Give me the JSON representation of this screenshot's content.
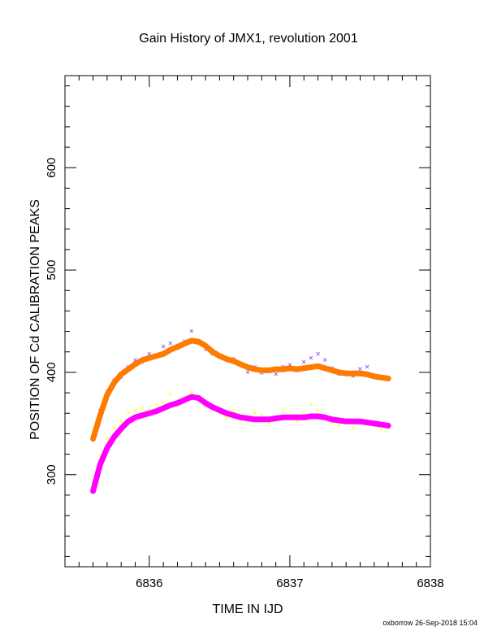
{
  "chart_data": {
    "type": "scatter",
    "title": "Gain History of JMX1, revolution 2001",
    "xlabel": "TIME IN IJD",
    "ylabel": "POSITION OF Cd CALIBRATION PEAKS",
    "xlim": [
      6835.4,
      6838.0
    ],
    "ylim": [
      210,
      690
    ],
    "xticks": [
      6836,
      6837,
      6838
    ],
    "yticks": [
      300,
      400,
      500,
      600
    ],
    "grid": false,
    "legend": "none",
    "series": [
      {
        "kind": "upper-raw-points",
        "color": "#7b2cff",
        "x": [
          6835.6,
          6835.65,
          6835.7,
          6835.75,
          6835.8,
          6835.85,
          6835.9,
          6835.95,
          6836.0,
          6836.05,
          6836.1,
          6836.15,
          6836.2,
          6836.25,
          6836.3,
          6836.35,
          6836.4,
          6836.45,
          6836.5,
          6836.55,
          6836.6,
          6836.65,
          6836.7,
          6836.75,
          6836.8,
          6836.85,
          6836.9,
          6836.95,
          6837.0,
          6837.05,
          6837.1,
          6837.15,
          6837.2,
          6837.25,
          6837.3,
          6837.35,
          6837.4,
          6837.45,
          6837.5,
          6837.55,
          6837.6,
          6837.65,
          6837.7
        ],
        "y": [
          338,
          362,
          381,
          392,
          395,
          405,
          412,
          410,
          418,
          415,
          425,
          428,
          423,
          430,
          440,
          428,
          422,
          418,
          416,
          412,
          413,
          408,
          400,
          405,
          399,
          402,
          398,
          405,
          407,
          403,
          410,
          414,
          418,
          412,
          404,
          398,
          400,
          396,
          403,
          405,
          396,
          394,
          393
        ]
      },
      {
        "kind": "upper-smoothed",
        "color": "#ff7a00",
        "x": [
          6835.6,
          6835.65,
          6835.7,
          6835.75,
          6835.8,
          6835.85,
          6835.9,
          6835.95,
          6836.0,
          6836.05,
          6836.1,
          6836.15,
          6836.2,
          6836.25,
          6836.3,
          6836.35,
          6836.4,
          6836.45,
          6836.5,
          6836.55,
          6836.6,
          6836.65,
          6836.7,
          6836.75,
          6836.8,
          6836.85,
          6836.9,
          6836.95,
          6837.0,
          6837.05,
          6837.1,
          6837.15,
          6837.2,
          6837.25,
          6837.3,
          6837.35,
          6837.4,
          6837.45,
          6837.5,
          6837.55,
          6837.6,
          6837.65,
          6837.7
        ],
        "y": [
          335,
          358,
          378,
          390,
          398,
          403,
          408,
          412,
          414,
          416,
          418,
          422,
          425,
          428,
          431,
          430,
          426,
          420,
          416,
          413,
          411,
          408,
          405,
          403,
          402,
          402,
          403,
          403,
          404,
          403,
          404,
          405,
          406,
          404,
          402,
          400,
          399,
          399,
          399,
          398,
          396,
          395,
          394
        ]
      },
      {
        "kind": "lower-raw-points",
        "color": "#ffff00",
        "x": [
          6835.6,
          6835.65,
          6835.7,
          6835.75,
          6835.8,
          6835.85,
          6835.9,
          6835.95,
          6836.0,
          6836.05,
          6836.1,
          6836.15,
          6836.2,
          6836.25,
          6836.3,
          6836.35,
          6836.4,
          6836.45,
          6836.5,
          6836.55,
          6836.6,
          6836.65,
          6836.7,
          6836.75,
          6836.8,
          6836.85,
          6836.9,
          6836.95,
          6837.0,
          6837.05,
          6837.1,
          6837.15,
          6837.2,
          6837.25,
          6837.3,
          6837.35,
          6837.4,
          6837.45,
          6837.5,
          6837.55,
          6837.6,
          6837.65,
          6837.7
        ],
        "y": [
          290,
          318,
          335,
          345,
          352,
          360,
          362,
          365,
          363,
          368,
          370,
          378,
          372,
          375,
          380,
          372,
          368,
          365,
          360,
          355,
          362,
          358,
          352,
          360,
          358,
          350,
          355,
          362,
          358,
          352,
          360,
          368,
          362,
          355,
          350,
          348,
          352,
          345,
          350,
          352,
          348,
          344,
          345
        ]
      },
      {
        "kind": "lower-smoothed",
        "color": "#ff00ff",
        "x": [
          6835.6,
          6835.65,
          6835.7,
          6835.75,
          6835.8,
          6835.85,
          6835.9,
          6835.95,
          6836.0,
          6836.05,
          6836.1,
          6836.15,
          6836.2,
          6836.25,
          6836.3,
          6836.35,
          6836.4,
          6836.45,
          6836.5,
          6836.55,
          6836.6,
          6836.65,
          6836.7,
          6836.75,
          6836.8,
          6836.85,
          6836.9,
          6836.95,
          6837.0,
          6837.05,
          6837.1,
          6837.15,
          6837.2,
          6837.25,
          6837.3,
          6837.35,
          6837.4,
          6837.45,
          6837.5,
          6837.55,
          6837.6,
          6837.65,
          6837.7
        ],
        "y": [
          284,
          310,
          326,
          337,
          345,
          352,
          356,
          358,
          360,
          362,
          365,
          368,
          370,
          373,
          376,
          375,
          370,
          366,
          363,
          360,
          358,
          356,
          355,
          354,
          354,
          354,
          355,
          356,
          356,
          356,
          356,
          357,
          357,
          356,
          354,
          353,
          352,
          352,
          352,
          351,
          350,
          349,
          348
        ]
      }
    ]
  },
  "footer": "oxborrow 26-Sep-2018 15:04"
}
